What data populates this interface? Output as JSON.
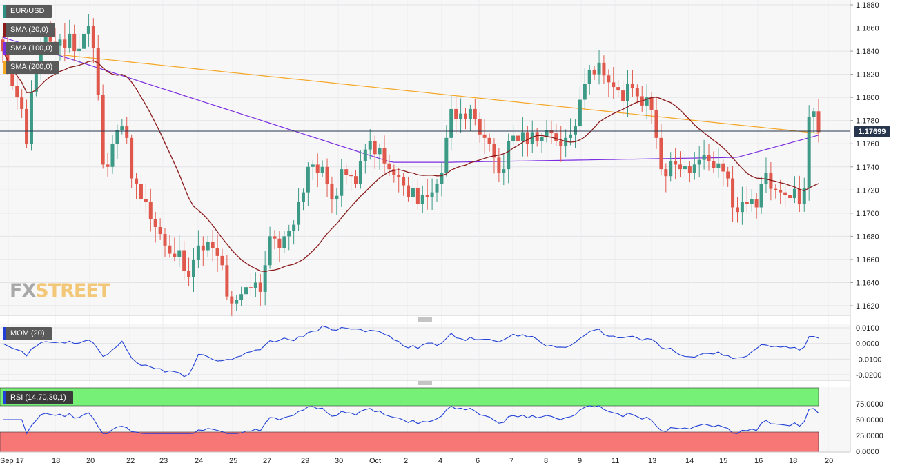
{
  "chart_data": [
    {
      "type": "candlestick",
      "title": "EUR/USD",
      "indicators": [
        {
          "name": "SMA (20,0)",
          "color": "#8b1a1a"
        },
        {
          "name": "SMA (100,0)",
          "color": "#7a2ee0"
        },
        {
          "name": "SMA (200,0)",
          "color": "#f5a623"
        }
      ],
      "last_price": "1.17699",
      "ylim": [
        1.161,
        1.188
      ],
      "y_ticks": [
        "1.1880",
        "1.1860",
        "1.1840",
        "1.1820",
        "1.1800",
        "1.1780",
        "1.1760",
        "1.1740",
        "1.1720",
        "1.1700",
        "1.1680",
        "1.1660",
        "1.1640",
        "1.1620"
      ],
      "x_ticks": [
        "Sep 17",
        "18",
        "20",
        "22",
        "23",
        "24",
        "25",
        "27",
        "29",
        "30",
        "Oct",
        "2",
        "4",
        "6",
        "7",
        "8",
        "9",
        "11",
        "13",
        "14",
        "15",
        "16",
        "18",
        "20"
      ],
      "candle_closes": [
        1.184,
        1.1825,
        1.181,
        1.18,
        1.179,
        1.176,
        1.1805,
        1.1822,
        1.1845,
        1.1852,
        1.1848,
        1.1845,
        1.185,
        1.1843,
        1.1855,
        1.184,
        1.1842,
        1.1855,
        1.1862,
        1.1843,
        1.1802,
        1.1742,
        1.174,
        1.176,
        1.1772,
        1.1775,
        1.1765,
        1.173,
        1.1725,
        1.1712,
        1.171,
        1.1695,
        1.1688,
        1.1682,
        1.1672,
        1.1665,
        1.1662,
        1.1668,
        1.165,
        1.1645,
        1.166,
        1.1672,
        1.1668,
        1.1675,
        1.167,
        1.1663,
        1.1655,
        1.1628,
        1.1622,
        1.1625,
        1.163,
        1.1636,
        1.1635,
        1.164,
        1.1632,
        1.1655,
        1.168,
        1.1678,
        1.167,
        1.168,
        1.1685,
        1.169,
        1.171,
        1.1718,
        1.174,
        1.1742,
        1.1735,
        1.174,
        1.1725,
        1.1712,
        1.1715,
        1.1738,
        1.1733,
        1.1732,
        1.1725,
        1.1745,
        1.1755,
        1.1762,
        1.1751,
        1.1756,
        1.1743,
        1.1738,
        1.1733,
        1.1731,
        1.1724,
        1.1714,
        1.1722,
        1.1708,
        1.1716,
        1.1714,
        1.1718,
        1.1725,
        1.1735,
        1.1765,
        1.179,
        1.1781,
        1.1786,
        1.1781,
        1.179,
        1.1781,
        1.1768,
        1.1765,
        1.176,
        1.1748,
        1.1735,
        1.1738,
        1.1762,
        1.1767,
        1.1762,
        1.177,
        1.176,
        1.177,
        1.1762,
        1.1766,
        1.1772,
        1.1769,
        1.1762,
        1.1758,
        1.1765,
        1.1768,
        1.1775,
        1.1798,
        1.1812,
        1.1824,
        1.182,
        1.183,
        1.1819,
        1.1813,
        1.1809,
        1.1806,
        1.1797,
        1.1812,
        1.1808,
        1.1801,
        1.1793,
        1.18,
        1.1789,
        1.1765,
        1.1738,
        1.1732,
        1.1745,
        1.1742,
        1.1738,
        1.1741,
        1.1735,
        1.1742,
        1.1746,
        1.175,
        1.1745,
        1.1739,
        1.1743,
        1.1736,
        1.173,
        1.1705,
        1.1701,
        1.171,
        1.1708,
        1.1712,
        1.1705,
        1.1725,
        1.1735,
        1.1721,
        1.172,
        1.1718,
        1.1716,
        1.1713,
        1.1721,
        1.1708,
        1.1722,
        1.1783,
        1.1788,
        1.177
      ]
    },
    {
      "type": "line",
      "title": "MOM (20)",
      "y_ticks": [
        "0.0100",
        "0.0000",
        "-0.0100",
        "-0.0200"
      ],
      "ylim": [
        -0.024,
        0.012
      ]
    },
    {
      "type": "line",
      "title": "RSI (14,70,30,1)",
      "y_ticks": [
        "75.0000",
        "50.0000",
        "25.0000",
        "0.0000"
      ],
      "ylim": [
        0,
        100
      ],
      "upper_band": 70,
      "lower_band": 30
    }
  ],
  "watermark": {
    "fx": "FX",
    "street": "STREET"
  }
}
